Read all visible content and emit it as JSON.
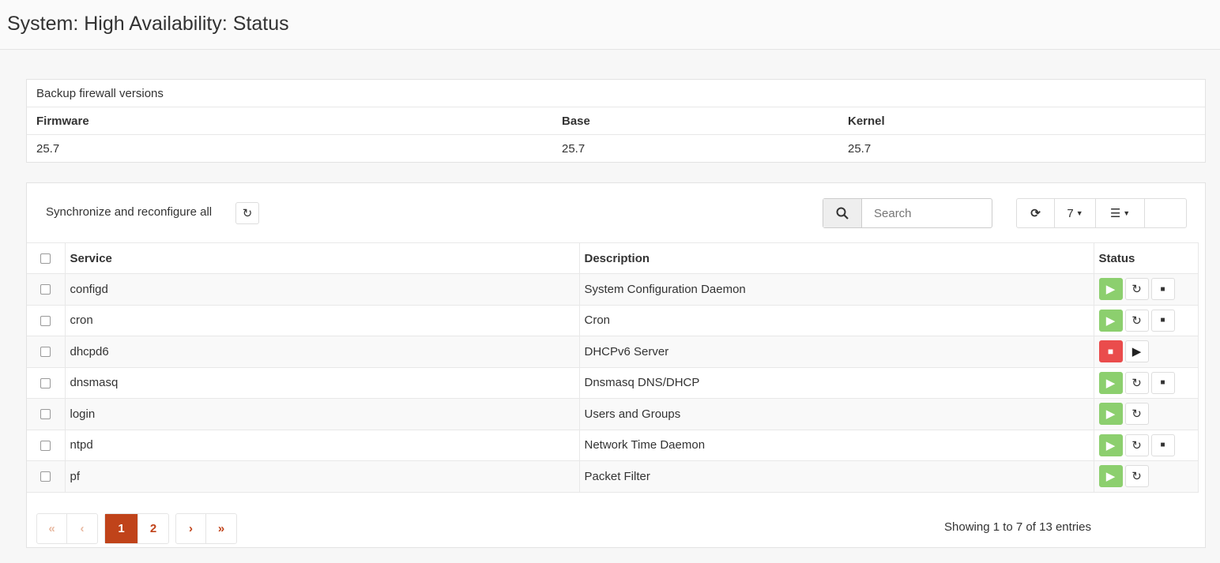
{
  "page_title": "System: High Availability: Status",
  "versions": {
    "title": "Backup firewall versions",
    "headers": [
      "Firmware",
      "Base",
      "Kernel"
    ],
    "values": [
      "25.7",
      "25.7",
      "25.7"
    ]
  },
  "toolbar": {
    "sync_label": "Synchronize and reconfigure all",
    "search_placeholder": "Search",
    "page_size": "7"
  },
  "table": {
    "headers": [
      "Service",
      "Description",
      "Status"
    ],
    "rows": [
      {
        "service": "configd",
        "description": "System Configuration Daemon",
        "running": true,
        "stop": true
      },
      {
        "service": "cron",
        "description": "Cron",
        "running": true,
        "stop": true
      },
      {
        "service": "dhcpd6",
        "description": "DHCPv6 Server",
        "running": false,
        "stop": false
      },
      {
        "service": "dnsmasq",
        "description": "Dnsmasq DNS/DHCP",
        "running": true,
        "stop": true
      },
      {
        "service": "login",
        "description": "Users and Groups",
        "running": true,
        "stop": false
      },
      {
        "service": "ntpd",
        "description": "Network Time Daemon",
        "running": true,
        "stop": true
      },
      {
        "service": "pf",
        "description": "Packet Filter",
        "running": true,
        "stop": false
      }
    ]
  },
  "pagination": {
    "first": "«",
    "prev": "‹",
    "pages": [
      "1",
      "2"
    ],
    "current": "1",
    "next": "›",
    "last": "»",
    "info": "Showing 1 to 7 of 13 entries"
  },
  "colors": {
    "accent": "#c0431a",
    "running": "#8ccf6e",
    "stopped": "#ea4c4c"
  }
}
